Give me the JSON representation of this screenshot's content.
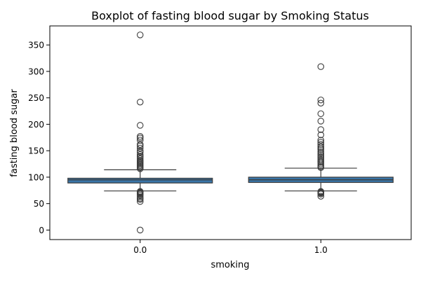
{
  "chart_data": {
    "type": "box",
    "title": "Boxplot of fasting blood sugar by Smoking Status",
    "xlabel": "smoking",
    "ylabel": "fasting blood sugar",
    "categories": [
      "0.0",
      "1.0"
    ],
    "ylim": [
      -18,
      386
    ],
    "yticks": [
      0,
      50,
      100,
      150,
      200,
      250,
      300,
      350
    ],
    "grid": false,
    "legend": "none",
    "colors": {
      "box_fill": "#3a75a8",
      "box_edge": "#3c3c3c",
      "median": "#3c3c3c",
      "whisker": "#3c3c3c",
      "flier_edge": "#3c3c3c"
    },
    "boxes": [
      {
        "category": "0.0",
        "whisker_low": 74,
        "q1": 89,
        "median": 95,
        "q3": 98,
        "whisker_high": 114,
        "outliers": [
          0,
          54,
          58,
          60,
          63,
          66,
          68,
          70,
          71,
          72,
          73,
          116,
          118,
          120,
          122,
          124,
          126,
          128,
          130,
          132,
          135,
          138,
          140,
          143,
          147,
          150,
          155,
          159,
          162,
          170,
          174,
          177,
          198,
          242,
          369
        ]
      },
      {
        "category": "1.0",
        "whisker_low": 74,
        "q1": 90,
        "median": 95,
        "q3": 100,
        "whisker_high": 117,
        "outliers": [
          64,
          68,
          70,
          71,
          72,
          73,
          118,
          120,
          122,
          125,
          128,
          130,
          133,
          136,
          139,
          142,
          145,
          148,
          152,
          155,
          158,
          162,
          166,
          170,
          180,
          190,
          206,
          220,
          240,
          246,
          309
        ]
      }
    ]
  }
}
